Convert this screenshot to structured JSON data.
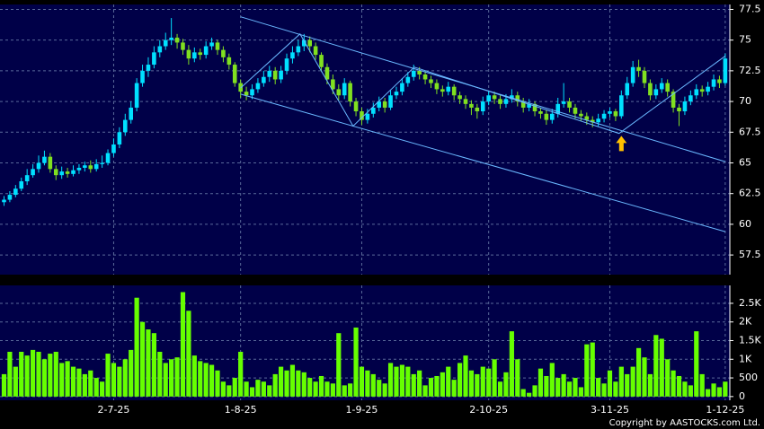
{
  "chart_data": [
    {
      "type": "candlestick",
      "up_color": "#00e0ff",
      "down_color": "#80e020",
      "open": [
        61.8,
        62.0,
        62.4,
        62.9,
        63.5,
        64.0,
        64.5,
        65.0,
        65.5,
        64.5,
        64.0,
        64.3,
        64.1,
        64.4,
        64.6,
        64.8,
        64.5,
        64.9,
        65.0,
        65.8,
        66.5,
        67.5,
        68.5,
        69.5,
        71.5,
        72.5,
        73.0,
        74.0,
        74.5,
        75.0,
        75.2,
        74.8,
        74.2,
        73.5,
        74.0,
        73.8,
        74.5,
        74.8,
        74.2,
        73.6,
        73.0,
        71.5,
        70.8,
        70.5,
        71.0,
        71.5,
        72.0,
        72.5,
        71.8,
        72.5,
        73.5,
        74.0,
        74.5,
        75.0,
        74.5,
        73.8,
        72.8,
        71.8,
        71.0,
        70.5,
        71.5,
        70.0,
        69.2,
        68.5,
        69.0,
        69.5,
        70.0,
        69.5,
        70.5,
        70.8,
        71.5,
        72.0,
        72.5,
        72.2,
        71.8,
        71.5,
        71.0,
        70.8,
        71.2,
        70.5,
        70.2,
        69.8,
        69.5,
        69.2,
        70.0,
        70.5,
        70.2,
        69.8,
        70.2,
        70.5,
        70.0,
        69.5,
        69.8,
        69.2,
        69.0,
        68.5,
        69.0,
        69.8,
        70.0,
        69.5,
        69.0,
        68.8,
        68.5,
        68.3,
        68.6,
        69.0,
        69.2,
        68.8,
        70.5,
        71.5,
        72.8,
        72.5,
        71.5,
        70.5,
        71.0,
        71.5,
        70.8,
        69.5,
        69.2,
        70.0,
        70.5,
        71.0,
        70.8,
        71.2,
        71.8,
        71.5
      ],
      "high": [
        62.3,
        62.7,
        63.2,
        63.8,
        64.5,
        64.9,
        65.6,
        66.0,
        65.8,
        64.8,
        64.7,
        64.6,
        64.8,
        64.9,
        65.1,
        65.2,
        65.3,
        65.6,
        66.1,
        67.0,
        67.9,
        69.0,
        70.0,
        71.9,
        73.0,
        73.6,
        74.5,
        75.0,
        75.6,
        76.8,
        75.5,
        75.1,
        74.6,
        74.4,
        74.3,
        74.9,
        75.2,
        75.0,
        74.5,
        73.9,
        73.2,
        71.8,
        71.2,
        71.4,
        71.9,
        72.5,
        72.9,
        72.8,
        72.9,
        73.9,
        74.5,
        75.0,
        75.5,
        75.3,
        74.8,
        74.0,
        73.1,
        72.2,
        71.4,
        71.9,
        71.7,
        70.3,
        69.5,
        69.4,
        69.9,
        70.4,
        70.3,
        70.9,
        71.2,
        71.9,
        72.4,
        73.0,
        72.8,
        72.5,
        72.1,
        71.8,
        71.3,
        71.6,
        71.4,
        70.8,
        70.5,
        70.1,
        69.8,
        70.4,
        70.9,
        70.8,
        70.5,
        70.6,
        71.0,
        70.8,
        70.3,
        70.2,
        70.0,
        69.5,
        69.3,
        69.4,
        70.3,
        71.5,
        70.3,
        69.8,
        69.3,
        69.1,
        68.8,
        69.0,
        69.3,
        69.5,
        69.4,
        70.9,
        72.0,
        73.3,
        73.4,
        72.8,
        71.8,
        71.4,
        71.9,
        71.8,
        71.0,
        69.8,
        70.4,
        70.9,
        71.4,
        71.3,
        71.6,
        72.2,
        72.1,
        73.9
      ],
      "low": [
        61.5,
        61.8,
        62.2,
        62.7,
        63.2,
        63.8,
        64.2,
        64.8,
        64.2,
        63.6,
        63.7,
        63.8,
        63.9,
        64.1,
        64.3,
        64.2,
        64.3,
        64.6,
        64.8,
        65.5,
        66.2,
        67.2,
        68.2,
        69.2,
        71.2,
        72.0,
        72.7,
        73.6,
        74.2,
        74.6,
        74.3,
        73.8,
        73.0,
        73.2,
        73.4,
        73.5,
        74.2,
        73.8,
        73.2,
        72.6,
        71.2,
        70.3,
        70.1,
        70.2,
        70.7,
        71.2,
        71.6,
        71.4,
        71.5,
        72.2,
        73.1,
        73.7,
        74.1,
        74.0,
        73.4,
        72.4,
        71.4,
        70.6,
        70.1,
        70.2,
        69.6,
        68.8,
        68.1,
        68.2,
        68.7,
        69.2,
        69.1,
        69.3,
        70.2,
        70.5,
        71.2,
        71.7,
        71.8,
        71.4,
        71.1,
        70.6,
        70.4,
        70.5,
        70.1,
        69.8,
        69.4,
        68.9,
        68.6,
        68.9,
        69.7,
        69.8,
        69.4,
        69.5,
        69.9,
        69.6,
        69.1,
        69.2,
        68.8,
        68.6,
        68.1,
        68.2,
        68.7,
        69.5,
        69.1,
        68.6,
        68.4,
        68.1,
        67.9,
        68.0,
        68.3,
        68.7,
        68.4,
        68.6,
        70.2,
        71.2,
        72.0,
        71.1,
        70.1,
        70.2,
        70.7,
        70.4,
        69.1,
        68.0,
        68.9,
        69.7,
        70.2,
        70.4,
        70.5,
        70.9,
        71.1,
        71.3
      ],
      "close": [
        62.0,
        62.4,
        62.9,
        63.5,
        64.0,
        64.5,
        65.0,
        65.5,
        64.5,
        64.0,
        64.3,
        64.1,
        64.4,
        64.6,
        64.8,
        64.5,
        64.9,
        65.0,
        65.8,
        66.5,
        67.5,
        68.5,
        69.5,
        71.5,
        72.5,
        73.0,
        74.0,
        74.5,
        75.0,
        75.2,
        74.8,
        74.2,
        73.5,
        74.0,
        73.8,
        74.5,
        74.8,
        74.2,
        73.6,
        73.0,
        71.5,
        70.8,
        70.5,
        71.0,
        71.5,
        72.0,
        72.5,
        71.8,
        72.5,
        73.5,
        74.0,
        74.5,
        75.0,
        74.5,
        73.8,
        72.8,
        71.8,
        71.0,
        70.5,
        71.5,
        70.0,
        69.2,
        68.5,
        69.0,
        69.5,
        70.0,
        69.5,
        70.5,
        70.8,
        71.5,
        72.0,
        72.5,
        72.2,
        71.8,
        71.5,
        71.0,
        70.8,
        71.2,
        70.5,
        70.2,
        69.8,
        69.5,
        69.2,
        70.0,
        70.5,
        70.2,
        69.8,
        70.2,
        70.5,
        70.0,
        69.5,
        69.8,
        69.2,
        69.0,
        68.5,
        69.0,
        69.8,
        70.0,
        69.5,
        69.0,
        68.8,
        68.5,
        68.3,
        68.6,
        69.0,
        69.2,
        68.8,
        70.5,
        71.5,
        72.8,
        72.5,
        71.5,
        70.5,
        71.0,
        71.5,
        70.8,
        69.5,
        69.2,
        70.0,
        70.5,
        71.0,
        70.8,
        71.2,
        71.8,
        71.5,
        73.5
      ],
      "xlim": [
        -0.7,
        125.8
      ],
      "ylim": [
        55.9,
        77.9
      ],
      "yticks": [
        57.5,
        60,
        62.5,
        65,
        67.5,
        70,
        72.5,
        75,
        77.5
      ],
      "trend_color": "#6ab8ff",
      "trendlines": [
        {
          "points": [
            [
              41,
              76.9
            ],
            [
              125,
              65.1
            ]
          ]
        },
        {
          "points": [
            [
              41,
              70.6
            ],
            [
              125,
              59.4
            ]
          ]
        },
        {
          "points": [
            [
              41,
              71.1
            ],
            [
              51.3,
              75.5
            ],
            [
              60.5,
              68.0
            ],
            [
              71.1,
              72.8
            ],
            [
              106.6,
              67.4
            ],
            [
              125,
              73.7
            ]
          ]
        }
      ],
      "arrow": {
        "x": 107,
        "y": 67.2,
        "color": "#ffc000"
      }
    },
    {
      "type": "bar",
      "color": "#66ff00",
      "values": [
        600,
        1200,
        800,
        1200,
        1100,
        1250,
        1200,
        1000,
        1150,
        1200,
        900,
        950,
        800,
        750,
        600,
        700,
        500,
        400,
        1150,
        900,
        800,
        1000,
        1250,
        2650,
        2000,
        1800,
        1700,
        1200,
        900,
        1000,
        1050,
        2800,
        2300,
        1100,
        950,
        900,
        850,
        700,
        400,
        300,
        500,
        1200,
        400,
        250,
        450,
        400,
        300,
        600,
        800,
        700,
        850,
        700,
        650,
        500,
        400,
        550,
        400,
        350,
        1700,
        300,
        350,
        1850,
        800,
        700,
        600,
        450,
        350,
        900,
        800,
        850,
        800,
        600,
        700,
        300,
        500,
        550,
        650,
        800,
        450,
        900,
        1100,
        700,
        600,
        800,
        750,
        1000,
        400,
        650,
        1750,
        1000,
        200,
        100,
        300,
        750,
        550,
        900,
        500,
        600,
        400,
        500,
        250,
        1400,
        1450,
        500,
        350,
        700,
        400,
        800,
        600,
        800,
        1300,
        1050,
        600,
        1650,
        1550,
        1000,
        700,
        550,
        400,
        300,
        1750,
        600,
        200,
        350,
        250,
        400
      ],
      "xlim": [
        -0.7,
        125.8
      ],
      "ylim": [
        -100,
        2980
      ],
      "yticks": [
        0,
        500,
        {
          "value": 1000,
          "label": "1K"
        },
        {
          "value": 1500,
          "label": "1.5K"
        },
        {
          "value": 2000,
          "label": "2K"
        },
        {
          "value": 2500,
          "label": "2.5K"
        }
      ],
      "xticks": [
        {
          "value": 19,
          "label": "2-7-25"
        },
        {
          "value": 41,
          "label": "1-8-25"
        },
        {
          "value": 62,
          "label": "1-9-25"
        },
        {
          "value": 84,
          "label": "2-10-25"
        },
        {
          "value": 105,
          "label": "3-11-25"
        },
        {
          "value": 125,
          "label": "1-12-25"
        }
      ]
    }
  ],
  "copyright": "Copyright by AASTOCKS.com Ltd."
}
